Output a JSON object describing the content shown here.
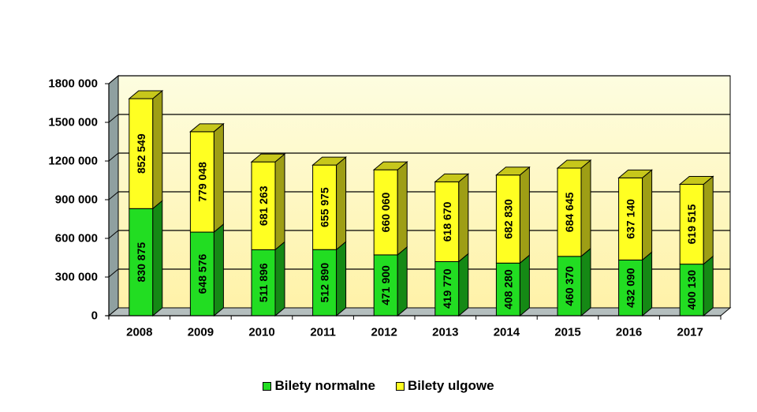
{
  "chart_data": {
    "type": "bar",
    "stacked": true,
    "categories": [
      "2008",
      "2009",
      "2010",
      "2011",
      "2012",
      "2013",
      "2014",
      "2015",
      "2016",
      "2017"
    ],
    "series": [
      {
        "name": "Bilety normalne",
        "color": "#22dd22",
        "values": [
          830875,
          648576,
          511896,
          512890,
          471900,
          419770,
          408280,
          460370,
          432090,
          400130
        ],
        "labels": [
          "830 875",
          "648 576",
          "511 896",
          "512 890",
          "471 900",
          "419 770",
          "408 280",
          "460 370",
          "432 090",
          "400 130"
        ]
      },
      {
        "name": "Bilety ulgowe",
        "color": "#ffff22",
        "values": [
          852549,
          779048,
          681263,
          655975,
          660060,
          618670,
          682830,
          684645,
          637140,
          619515
        ],
        "labels": [
          "852 549",
          "779 048",
          "681 263",
          "655 975",
          "660 060",
          "618 670",
          "682 830",
          "684 645",
          "637 140",
          "619 515"
        ]
      }
    ],
    "ylim": [
      0,
      1800000
    ],
    "yticks": [
      0,
      300000,
      600000,
      900000,
      1200000,
      1500000,
      1800000
    ],
    "ytick_labels": [
      "0",
      "300 000",
      "600 000",
      "900 000",
      "1200 000",
      "1500 000",
      "1800 000"
    ],
    "grid": true,
    "legend_position": "bottom",
    "colors": {
      "wall_top": "#fdfde0",
      "wall_bottom": "#fff2a8",
      "side_wall": "#8fa0a0",
      "floor": "#b4bebe"
    }
  }
}
